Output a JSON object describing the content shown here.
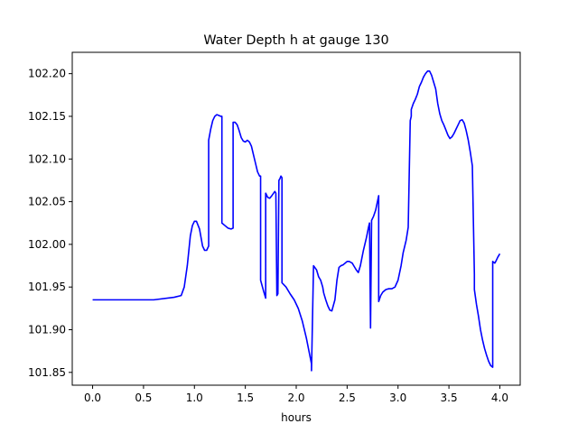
{
  "chart_data": {
    "type": "line",
    "title": "Water Depth h at gauge 130",
    "xlabel": "hours",
    "ylabel": "",
    "xlim": [
      -0.2,
      4.2
    ],
    "ylim": [
      101.835,
      102.225
    ],
    "xticks": [
      0.0,
      0.5,
      1.0,
      1.5,
      2.0,
      2.5,
      3.0,
      3.5,
      4.0
    ],
    "xtick_labels": [
      "0.0",
      "0.5",
      "1.0",
      "1.5",
      "2.0",
      "2.5",
      "3.0",
      "3.5",
      "4.0"
    ],
    "yticks": [
      101.85,
      101.9,
      101.95,
      102.0,
      102.05,
      102.1,
      102.15,
      102.2
    ],
    "ytick_labels": [
      "101.85",
      "101.90",
      "101.95",
      "102.00",
      "102.05",
      "102.10",
      "102.15",
      "102.20"
    ],
    "grid": false,
    "series": [
      {
        "color": "#0000ff",
        "x": [
          0.0,
          0.3,
          0.6,
          0.8,
          0.87,
          0.9,
          0.93,
          0.96,
          0.98,
          1.0,
          1.02,
          1.05,
          1.08,
          1.1,
          1.12,
          1.14,
          1.14,
          1.16,
          1.18,
          1.2,
          1.22,
          1.24,
          1.26,
          1.27,
          1.27,
          1.3,
          1.33,
          1.36,
          1.38,
          1.38,
          1.4,
          1.42,
          1.44,
          1.46,
          1.48,
          1.5,
          1.52,
          1.54,
          1.56,
          1.58,
          1.6,
          1.62,
          1.64,
          1.65,
          1.65,
          1.68,
          1.7,
          1.7,
          1.72,
          1.74,
          1.76,
          1.79,
          1.8,
          1.81,
          1.82,
          1.83,
          1.84,
          1.85,
          1.86,
          1.86,
          1.9,
          1.94,
          1.98,
          2.02,
          2.06,
          2.1,
          2.13,
          2.15,
          2.15,
          2.17,
          2.2,
          2.22,
          2.24,
          2.26,
          2.27,
          2.29,
          2.31,
          2.33,
          2.35,
          2.38,
          2.4,
          2.42,
          2.44,
          2.46,
          2.48,
          2.5,
          2.52,
          2.55,
          2.57,
          2.59,
          2.61,
          2.63,
          2.66,
          2.69,
          2.71,
          2.72,
          2.73,
          2.74,
          2.74,
          2.76,
          2.78,
          2.81,
          2.81,
          2.83,
          2.85,
          2.88,
          2.91,
          2.94,
          2.97,
          3.0,
          3.03,
          3.05,
          3.08,
          3.1,
          3.12,
          3.13,
          3.13,
          3.15,
          3.17,
          3.19,
          3.21,
          3.23,
          3.25,
          3.27,
          3.29,
          3.31,
          3.33,
          3.35,
          3.37,
          3.39,
          3.41,
          3.43,
          3.45,
          3.47,
          3.49,
          3.51,
          3.53,
          3.55,
          3.57,
          3.59,
          3.61,
          3.63,
          3.65,
          3.67,
          3.69,
          3.71,
          3.73,
          3.75,
          3.75,
          3.77,
          3.79,
          3.81,
          3.83,
          3.85,
          3.87,
          3.89,
          3.91,
          3.93,
          3.93,
          3.94,
          3.95,
          3.96,
          3.98,
          4.0
        ],
        "y": [
          101.935,
          101.935,
          101.935,
          101.938,
          101.94,
          101.95,
          101.975,
          102.01,
          102.022,
          102.027,
          102.027,
          102.018,
          101.998,
          101.993,
          101.993,
          101.998,
          102.122,
          102.135,
          102.145,
          102.15,
          102.152,
          102.151,
          102.15,
          102.15,
          102.025,
          102.022,
          102.019,
          102.018,
          102.019,
          102.143,
          102.143,
          102.14,
          102.133,
          102.125,
          102.121,
          102.12,
          102.122,
          102.12,
          102.115,
          102.105,
          102.095,
          102.085,
          102.08,
          102.08,
          101.958,
          101.945,
          101.937,
          102.06,
          102.055,
          102.054,
          102.057,
          102.062,
          102.06,
          101.94,
          101.942,
          102.075,
          102.077,
          102.08,
          102.078,
          101.955,
          101.95,
          101.942,
          101.935,
          101.925,
          101.91,
          101.89,
          101.872,
          101.86,
          101.852,
          101.975,
          101.97,
          101.962,
          101.958,
          101.95,
          101.943,
          101.935,
          101.928,
          101.923,
          101.922,
          101.935,
          101.958,
          101.973,
          101.975,
          101.976,
          101.978,
          101.98,
          101.98,
          101.978,
          101.974,
          101.97,
          101.967,
          101.975,
          101.993,
          102.008,
          102.02,
          102.025,
          101.902,
          102.025,
          102.028,
          102.033,
          102.04,
          102.057,
          101.933,
          101.94,
          101.944,
          101.947,
          101.948,
          101.948,
          101.95,
          101.958,
          101.975,
          101.99,
          102.005,
          102.02,
          102.145,
          102.15,
          102.158,
          102.165,
          102.17,
          102.176,
          102.185,
          102.19,
          102.196,
          102.2,
          102.203,
          102.203,
          102.198,
          102.19,
          102.182,
          102.165,
          102.153,
          102.145,
          102.14,
          102.134,
          102.128,
          102.124,
          102.126,
          102.13,
          102.135,
          102.14,
          102.145,
          102.146,
          102.142,
          102.133,
          102.122,
          102.108,
          102.092,
          101.965,
          101.947,
          101.93,
          101.916,
          101.9,
          101.888,
          101.878,
          101.87,
          101.863,
          101.858,
          101.856,
          101.98,
          101.979,
          101.978,
          101.98,
          101.985,
          101.989
        ]
      }
    ]
  }
}
